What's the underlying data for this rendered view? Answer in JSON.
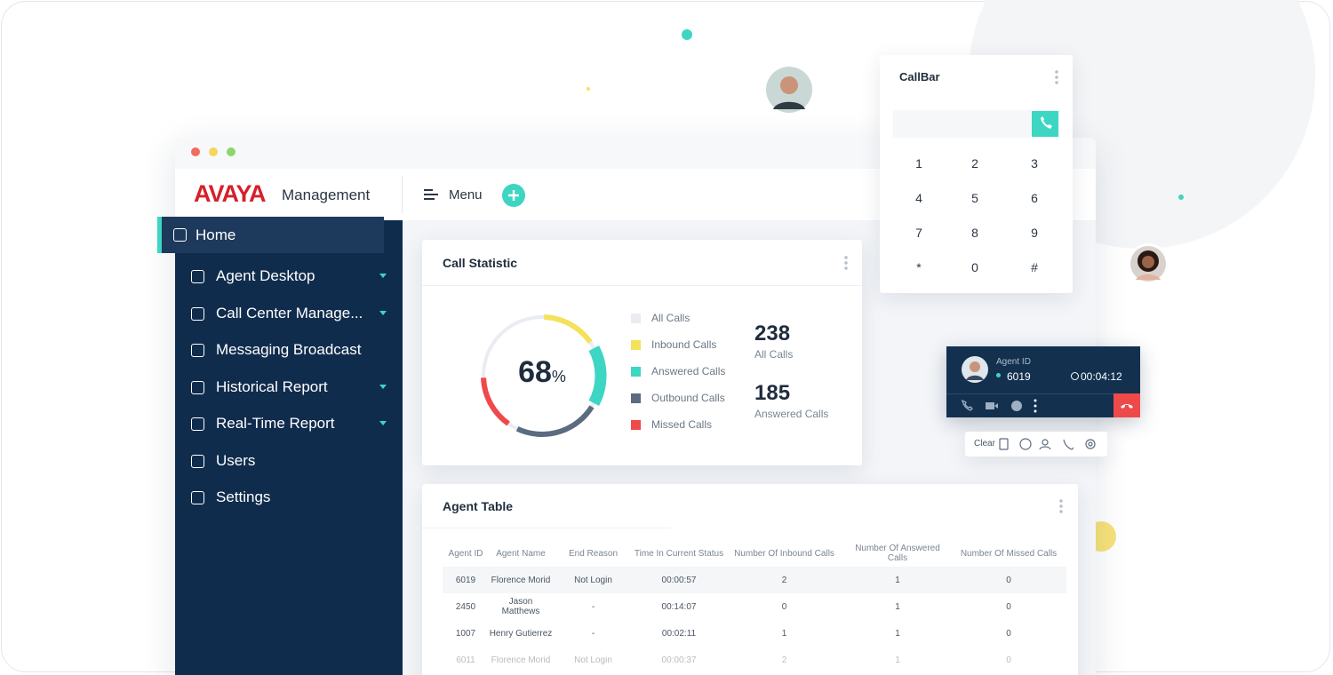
{
  "header": {
    "brand": "AVAYA",
    "product": "Management",
    "menu": "Menu"
  },
  "sidebar": {
    "active": 0,
    "items": [
      {
        "label": "Home",
        "expandable": false
      },
      {
        "label": "Agent Desktop",
        "expandable": true
      },
      {
        "label": "Call Center Manage...",
        "expandable": true
      },
      {
        "label": "Messaging Broadcast",
        "expandable": false
      },
      {
        "label": "Historical Report",
        "expandable": true
      },
      {
        "label": "Real-Time Report",
        "expandable": true
      },
      {
        "label": "Users",
        "expandable": false
      },
      {
        "label": "Settings",
        "expandable": false
      }
    ]
  },
  "call_statistic": {
    "title": "Call Statistic",
    "gauge": {
      "value": 68,
      "unit": "%"
    },
    "legend": [
      {
        "label": "All Calls",
        "color": "#e9edf2"
      },
      {
        "label": "Inbound Calls",
        "color": "#f5e15a"
      },
      {
        "label": "Answered Calls",
        "color": "#3dd6c3"
      },
      {
        "label": "Outbound Calls",
        "color": "#5b6b80"
      },
      {
        "label": "Missed Calls",
        "color": "#ef4a4a"
      }
    ],
    "stats": [
      {
        "value": 238,
        "label": "All Calls"
      },
      {
        "value": 185,
        "label": "Answered Calls"
      }
    ]
  },
  "agent_table": {
    "title": "Agent Table",
    "columns": [
      "Agent ID",
      "Agent Name",
      "End Reason",
      "Time In Current Status",
      "Number Of Inbound Calls",
      "Number Of Answered Calls",
      "Number Of Missed Calls"
    ],
    "rows": [
      [
        "6019",
        "Florence Morid",
        "Not Login",
        "00:00:57",
        2,
        1,
        0
      ],
      [
        "2450",
        "Jason Matthews",
        "-",
        "00:14:07",
        0,
        1,
        0
      ],
      [
        "1007",
        "Henry Gutierrez",
        "-",
        "00:02:11",
        1,
        1,
        0
      ],
      [
        "6011",
        "Florence Morid",
        "Not Login",
        "00:00:37",
        2,
        1,
        0
      ]
    ]
  },
  "callbar": {
    "title": "CallBar",
    "keys": [
      "1",
      "2",
      "3",
      "4",
      "5",
      "6",
      "7",
      "8",
      "9",
      "*",
      "0",
      "#"
    ]
  },
  "agent_card": {
    "label": "Agent ID",
    "id": "6019",
    "timer": "00:04:12"
  },
  "toolbar": {
    "label": "Clear"
  }
}
